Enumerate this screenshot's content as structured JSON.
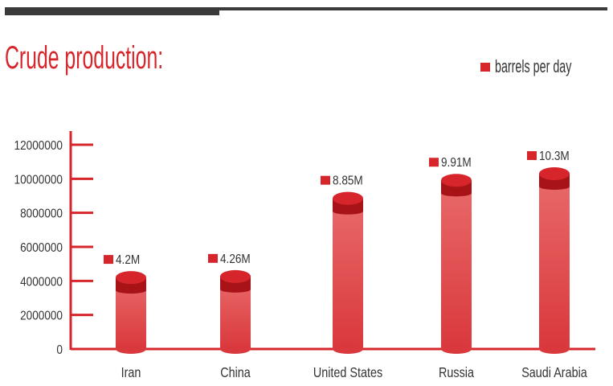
{
  "chart_data": {
    "type": "bar",
    "title": "Crude production:",
    "legend": [
      {
        "label": "barrels per day",
        "color": "#d6262b"
      }
    ],
    "legend_position": "top-right",
    "categories": [
      "Iran",
      "China",
      "United States",
      "Russia",
      "Saudi Arabia"
    ],
    "values": [
      4200000,
      4260000,
      8850000,
      9910000,
      10300000
    ],
    "data_labels": [
      "4.2M",
      "4.26M",
      "8.85M",
      "9.91M",
      "10.3M"
    ],
    "ylim": [
      0,
      12000000
    ],
    "yticks": [
      "0",
      "2000000",
      "4000000",
      "6000000",
      "8000000",
      "10000000",
      "12000000"
    ],
    "xlabel": "",
    "ylabel": "",
    "grid": false
  },
  "colors": {
    "accent": "#d6262b",
    "dark": "#3a3a3a"
  }
}
